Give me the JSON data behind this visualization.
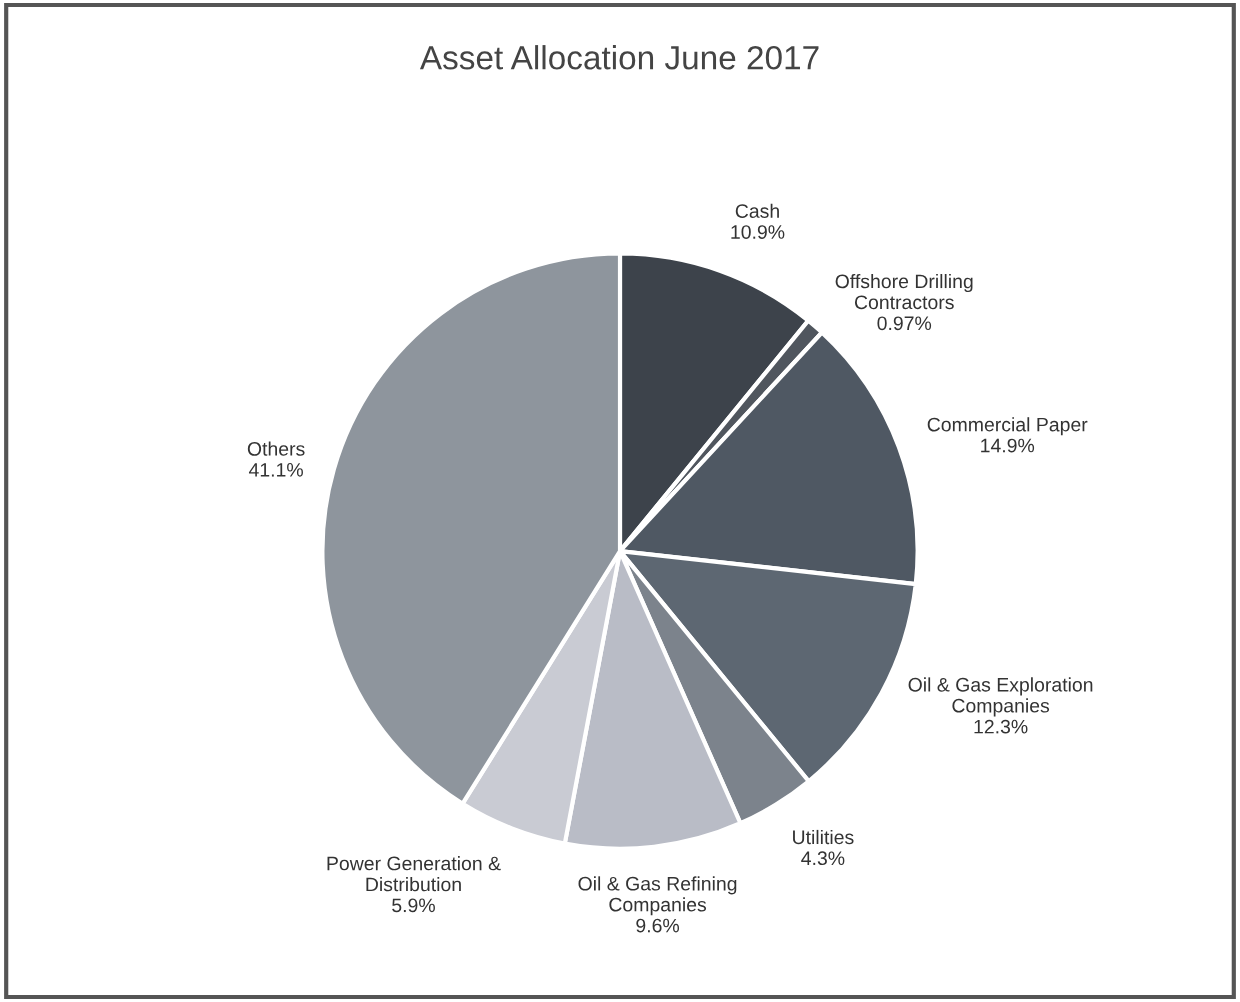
{
  "chart_data": {
    "type": "pie",
    "title": "Asset Allocation June 2017",
    "categories": [
      "Cash",
      "Offshore Drilling\nContractors",
      "Commercial Paper",
      "Oil & Gas Exploration\nCompanies",
      "Utilities",
      "Oil & Gas Refining\nCompanies",
      "Power Generation &\nDistribution",
      "Others"
    ],
    "values": [
      10.9,
      0.97,
      14.9,
      12.3,
      4.3,
      9.6,
      5.9,
      41.13
    ],
    "value_labels": [
      "10.9%",
      "0.97%",
      "14.9%",
      "12.3%",
      "4.3%",
      "9.6%",
      "5.9%",
      "41.1%"
    ],
    "colors": [
      "#3d434b",
      "#50565e",
      "#4f5863",
      "#5d6772",
      "#7c838c",
      "#b9bcc6",
      "#c9cbd3",
      "#8e959d"
    ],
    "legend": false
  }
}
